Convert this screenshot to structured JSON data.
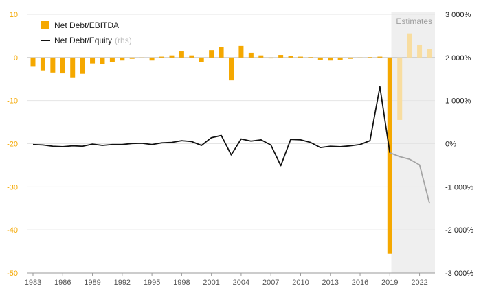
{
  "chart_data": {
    "type": "bar+line",
    "x": [
      1983,
      1984,
      1985,
      1986,
      1987,
      1988,
      1989,
      1990,
      1991,
      1992,
      1993,
      1994,
      1995,
      1996,
      1997,
      1998,
      1999,
      2000,
      2001,
      2002,
      2003,
      2004,
      2005,
      2006,
      2007,
      2008,
      2009,
      2010,
      2011,
      2012,
      2013,
      2014,
      2015,
      2016,
      2017,
      2018,
      2019,
      2020,
      2021,
      2022,
      2023
    ],
    "estimates_from": 2020,
    "estimates_label": "Estimates",
    "xticks": [
      1983,
      1986,
      1989,
      1992,
      1995,
      1998,
      2001,
      2004,
      2007,
      2010,
      2013,
      2016,
      2019,
      2022
    ],
    "series": [
      {
        "name": "Net Debt/EBITDA",
        "axis": "left",
        "kind": "bar",
        "color": "#f5a800",
        "estimate_color": "#f8dda0",
        "values": [
          -2,
          -3,
          -3.5,
          -3.7,
          -4.6,
          -3.8,
          -1.4,
          -1.6,
          -1,
          -0.7,
          -0.3,
          0,
          -0.7,
          0.2,
          0.5,
          1.4,
          0.5,
          -1,
          1.7,
          2.4,
          -5.3,
          2.7,
          1.1,
          0.5,
          -0.2,
          0.6,
          0.4,
          0.2,
          0.1,
          -0.5,
          -0.7,
          -0.5,
          -0.3,
          -0.1,
          0.1,
          0.2,
          -45.5,
          -14.5,
          5.6,
          3,
          2
        ]
      },
      {
        "name": "Net Debt/Equity",
        "name_suffix": "(rhs)",
        "axis": "right",
        "kind": "line",
        "color": "#111111",
        "estimate_color": "#a3a3a3",
        "values": [
          -20,
          -30,
          -60,
          -70,
          -50,
          -60,
          -10,
          -40,
          -20,
          -20,
          5,
          10,
          -20,
          20,
          30,
          70,
          50,
          -40,
          140,
          190,
          -260,
          110,
          60,
          90,
          -30,
          -510,
          100,
          90,
          30,
          -90,
          -60,
          -70,
          -50,
          -20,
          70,
          1320,
          -210,
          -300,
          -360,
          -490,
          -1380
        ]
      }
    ],
    "ylim_left": [
      -50,
      10
    ],
    "yticks_left": [
      10,
      0,
      -10,
      -20,
      -30,
      -40,
      -50
    ],
    "ylim_right": [
      -3000,
      3000
    ],
    "yticks_right": [
      "3 000%",
      "2 000%",
      "1 000%",
      "0%",
      "-1 000%",
      "-2 000%",
      "-3 000%"
    ],
    "tick_color_left": "#f5a800",
    "grid": true,
    "legend_position": "top-left"
  }
}
